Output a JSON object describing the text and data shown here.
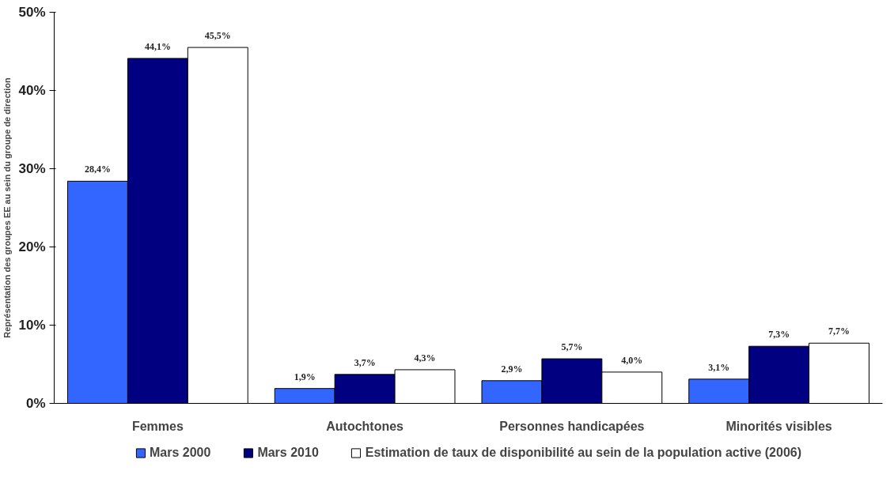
{
  "chart_data": {
    "type": "bar",
    "ylabel": "Représentation des groupes EE au sein du groupe de direction",
    "categories": [
      "Femmes",
      "Autochtones",
      "Personnes handicapées",
      "Minorités visibles"
    ],
    "series": [
      {
        "name": "Mars 2000",
        "color": "#3366ff",
        "values": [
          28.4,
          1.9,
          2.9,
          3.1
        ],
        "value_labels": [
          "28,4%",
          "1,9%",
          "2,9%",
          "3,1%"
        ]
      },
      {
        "name": "Mars 2010",
        "color": "#000080",
        "values": [
          44.1,
          3.7,
          5.7,
          7.3
        ],
        "value_labels": [
          "44,1%",
          "3,7%",
          "5,7%",
          "7,3%"
        ]
      },
      {
        "name": "Estimation de taux de disponibilité au sein de la population active (2006)",
        "color": "#ffffff",
        "values": [
          45.5,
          4.3,
          4.0,
          7.7
        ],
        "value_labels": [
          "45,5%",
          "4,3%",
          "4,0%",
          "7,7%"
        ]
      }
    ],
    "ylim": [
      0,
      50
    ],
    "yticks": [
      {
        "value": 0,
        "label": "0%"
      },
      {
        "value": 10,
        "label": "10%"
      },
      {
        "value": 20,
        "label": "20%"
      },
      {
        "value": 30,
        "label": "30%"
      },
      {
        "value": 40,
        "label": "40%"
      },
      {
        "value": 50,
        "label": "50%"
      }
    ],
    "grid": false,
    "legend": "bottom"
  }
}
